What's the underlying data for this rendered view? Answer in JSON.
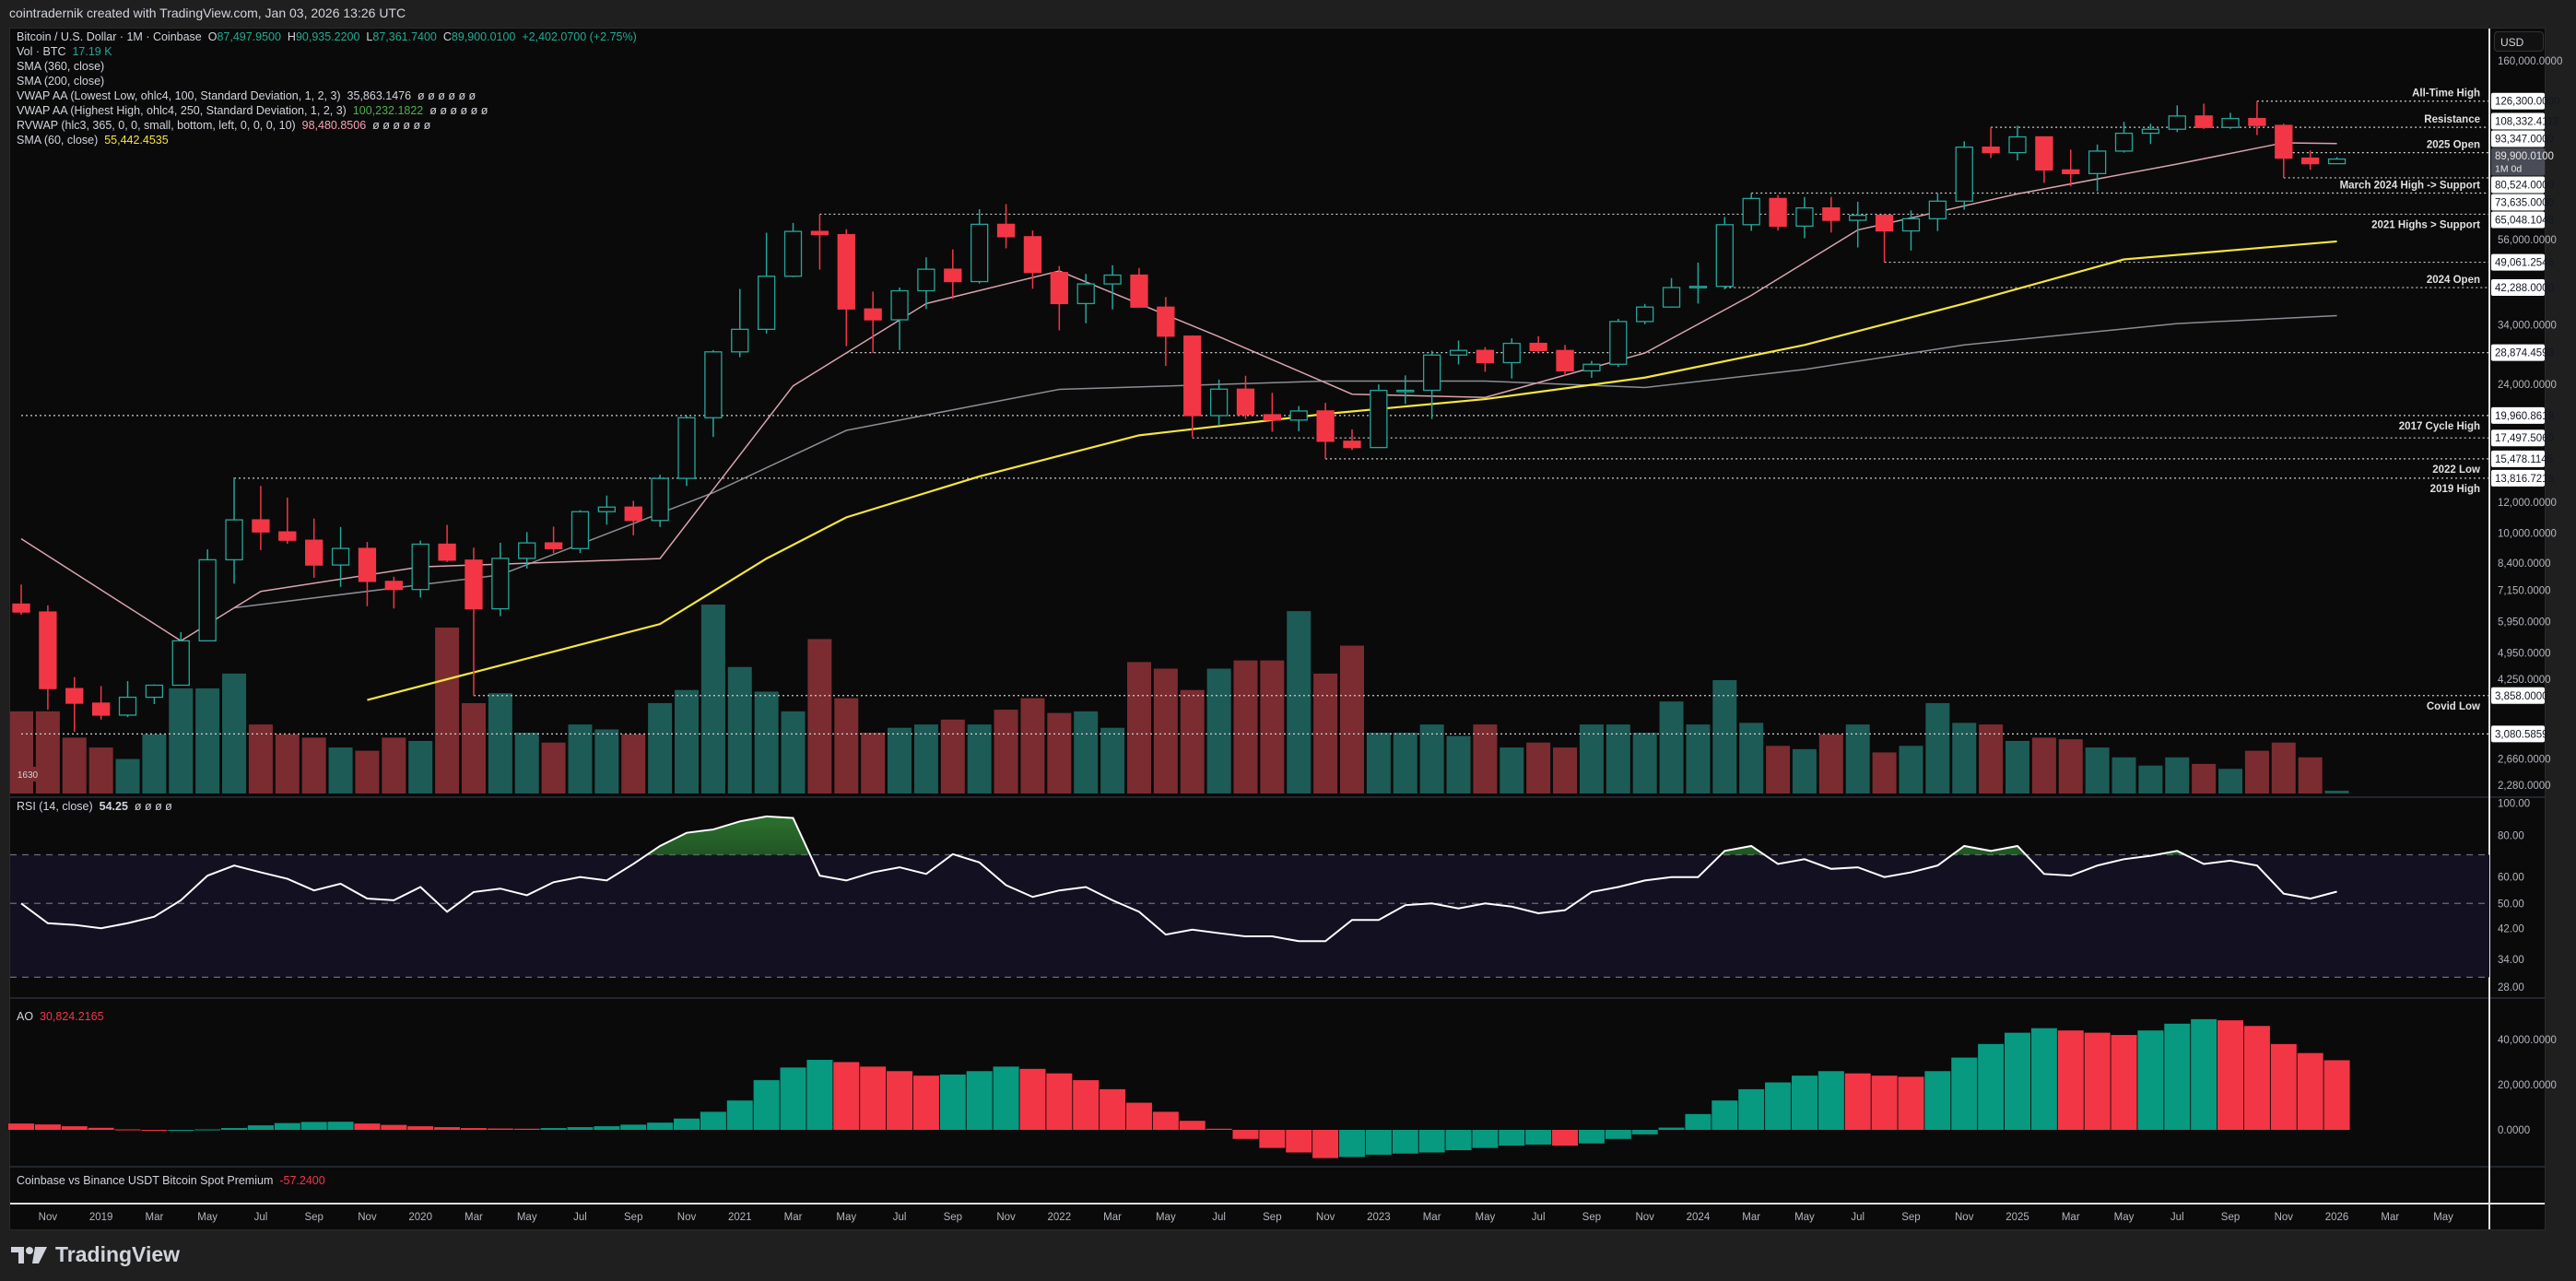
{
  "header": {
    "text": "cointradernik created with TradingView.com, Jan 03, 2026 13:26 UTC"
  },
  "legend": {
    "symbol": "Bitcoin / U.S. Dollar · 1M · Coinbase",
    "o_label": "O",
    "o": "87,497.9500",
    "h_label": "H",
    "h": "90,935.2200",
    "l_label": "L",
    "l": "87,361.7400",
    "c_label": "C",
    "c": "89,900.0100",
    "change": "+2,402.0700 (+2.75%)",
    "vol_label": "Vol · BTC",
    "vol": "17.19 K",
    "sma360": "SMA (360, close)",
    "sma200": "SMA (200, close)",
    "vwap_low": "VWAP AA (Lowest Low, ohlc4, 100, Standard Deviation, 1, 2, 3)",
    "vwap_low_val": "35,863.1476",
    "vwap_high": "VWAP AA (Highest High, ohlc4, 250, Standard Deviation, 1, 2, 3)",
    "vwap_high_val": "100,232.1822",
    "rvwap": "RVWAP (hlc3, 365, 0, 0, small, bottom, left, 0, 0, 0, 10)",
    "rvwap_val": "98,480.8506",
    "sma60": "SMA (60, close)",
    "sma60_val": "55,442.4535",
    "na": "ø ø ø ø ø ø"
  },
  "price_axis": {
    "currency": "USD",
    "ticks": [
      "160,000.0000",
      "56,000.0000",
      "34,000.0000",
      "24,000.0000",
      "12,000.0000",
      "10,000.0000",
      "8,400.0000",
      "7,150.0000",
      "5,950.0000",
      "4,950.0000",
      "4,250.0000",
      "2,660.0000",
      "2,280.0000"
    ],
    "tick_values": [
      160000,
      56000,
      34000,
      24000,
      12000,
      10000,
      8400,
      7150,
      5950,
      4950,
      4250,
      2660,
      2280
    ],
    "current_price": "89,900.0100",
    "current_countdown": "1M 0d"
  },
  "levels": [
    {
      "price": 126300,
      "tag": "126,300.0000",
      "label": "All-Time High",
      "pos": "above",
      "from": 84
    },
    {
      "price": 108332.4112,
      "tag": "108,332.4112",
      "label": "Resistance",
      "pos": "above",
      "from": 74
    },
    {
      "price": 93347,
      "tag": "93,347.0000",
      "label": "2025 Open",
      "pos": "above",
      "from": 85
    },
    {
      "price": 80524,
      "tag": "80,524.0000",
      "label": "",
      "pos": "above",
      "from": 85
    },
    {
      "price": 73635,
      "tag": "73,635.0000",
      "label": "March 2024 High -> Support",
      "pos": "above",
      "from": 65
    },
    {
      "price": 65048.1048,
      "tag": "65,048.1048",
      "label": "2021 Highs > Support",
      "pos": "below",
      "from": 30
    },
    {
      "price": 49061.2546,
      "tag": "49,061.2546",
      "label": "",
      "pos": "above",
      "from": 70
    },
    {
      "price": 42288,
      "tag": "42,288.0000",
      "label": "2024 Open",
      "pos": "above",
      "from": 64
    },
    {
      "price": 28874.4593,
      "tag": "28,874.4593",
      "label": "",
      "pos": "above",
      "from": 31
    },
    {
      "price": 19960.8619,
      "tag": "19,960.8619",
      "label": "2017 Cycle High",
      "pos": "below",
      "from": 0
    },
    {
      "price": 17497.506,
      "tag": "17,497.5060",
      "label": "",
      "pos": "above",
      "from": 44
    },
    {
      "price": 15478.1145,
      "tag": "15,478.1145",
      "label": "2022 Low",
      "pos": "below",
      "from": 49
    },
    {
      "price": 13816.7216,
      "tag": "13,816.7216",
      "label": "2019 High",
      "pos": "below",
      "from": 8
    },
    {
      "price": 3858,
      "tag": "3,858.0000",
      "label": "Covid Low",
      "pos": "below",
      "from": 17
    },
    {
      "price": 3080.5859,
      "tag": "3,080.5859",
      "label": "",
      "pos": "above",
      "from": 0
    }
  ],
  "volume_badge": "1630",
  "rsi": {
    "label": "RSI (14, close)",
    "value": "54.25",
    "na": "ø ø ø ø",
    "ticks": [
      "100.00",
      "80.00",
      "60.00",
      "50.00",
      "42.00",
      "34.00",
      "28.00"
    ],
    "tick_values": [
      100,
      80,
      60,
      50,
      42,
      34,
      28
    ]
  },
  "ao": {
    "label": "AO",
    "value": "30,824.2165",
    "ticks": [
      "40,000.0000",
      "20,000.0000",
      "0.0000"
    ],
    "tick_values": [
      40000,
      20000,
      0
    ]
  },
  "premium": {
    "label": "Coinbase vs Binance USDT Bitcoin Spot Premium",
    "value": "-57.2400"
  },
  "time_axis": [
    "Nov",
    "2019",
    "Mar",
    "May",
    "Jul",
    "Sep",
    "Nov",
    "2020",
    "Mar",
    "May",
    "Jul",
    "Sep",
    "Nov",
    "2021",
    "Mar",
    "May",
    "Jul",
    "Sep",
    "Nov",
    "2022",
    "Mar",
    "May",
    "Jul",
    "Sep",
    "Nov",
    "2023",
    "Mar",
    "May",
    "Jul",
    "Sep",
    "Nov",
    "2024",
    "Mar",
    "May",
    "Jul",
    "Sep",
    "Nov",
    "2025",
    "Mar",
    "May",
    "Jul",
    "Sep",
    "Nov",
    "2026",
    "Mar",
    "May"
  ],
  "footer": {
    "brand": "TradingView"
  },
  "colors": {
    "up": "#26a69a",
    "down": "#f23645",
    "vol_up": "#1d5b56",
    "vol_down": "#7b2c30",
    "sma60": "#f5e63c",
    "rvwap": "#d9a3ad",
    "vwap_low": "#8a8d94",
    "rsi": "#ffffff"
  },
  "chart_data": {
    "type": "candlestick",
    "interval": "1M",
    "start_month": "2018-10",
    "scale": "log",
    "ylim": [
      2280,
      160000
    ],
    "candles_ohlc": [
      [
        6600,
        7400,
        6200,
        6300
      ],
      [
        6300,
        6550,
        3550,
        4020
      ],
      [
        4020,
        4300,
        3120,
        3690
      ],
      [
        3690,
        4080,
        3350,
        3440
      ],
      [
        3440,
        4200,
        3400,
        3820
      ],
      [
        3820,
        4120,
        3670,
        4100
      ],
      [
        4100,
        5600,
        4100,
        5320
      ],
      [
        5320,
        9100,
        5320,
        8560
      ],
      [
        8560,
        13880,
        7440,
        10820
      ],
      [
        10820,
        13200,
        9060,
        10080
      ],
      [
        10080,
        12330,
        9400,
        9600
      ],
      [
        9600,
        10900,
        7700,
        8300
      ],
      [
        8300,
        10370,
        7300,
        9150
      ],
      [
        9150,
        9500,
        6520,
        7540
      ],
      [
        7540,
        7750,
        6430,
        7190
      ],
      [
        7190,
        9580,
        6860,
        9380
      ],
      [
        9380,
        10500,
        8450,
        8540
      ],
      [
        8540,
        9190,
        3858,
        6420
      ],
      [
        6420,
        9460,
        6150,
        8630
      ],
      [
        8630,
        10070,
        8130,
        9450
      ],
      [
        9450,
        10400,
        8900,
        9140
      ],
      [
        9140,
        11450,
        8900,
        11350
      ],
      [
        11350,
        12480,
        10520,
        11660
      ],
      [
        11660,
        12100,
        9880,
        10780
      ],
      [
        10780,
        14100,
        10380,
        13800
      ],
      [
        13800,
        19900,
        13200,
        19700
      ],
      [
        19700,
        29300,
        17600,
        29000
      ],
      [
        29000,
        41950,
        28100,
        33100
      ],
      [
        33100,
        58350,
        32300,
        45200
      ],
      [
        45200,
        61800,
        44950,
        58800
      ],
      [
        58800,
        64900,
        47000,
        57700
      ],
      [
        57700,
        59600,
        30000,
        37300
      ],
      [
        37300,
        41300,
        28800,
        35000
      ],
      [
        35000,
        42300,
        29300,
        41500
      ],
      [
        41500,
        50500,
        37300,
        47100
      ],
      [
        47100,
        52900,
        39600,
        43800
      ],
      [
        43800,
        67000,
        43300,
        61300
      ],
      [
        61300,
        69000,
        53250,
        57000
      ],
      [
        57000,
        59100,
        42000,
        46200
      ],
      [
        46200,
        47990,
        32900,
        38500
      ],
      [
        38500,
        45800,
        34300,
        43200
      ],
      [
        43200,
        48200,
        37200,
        45500
      ],
      [
        45500,
        47450,
        37600,
        37700
      ],
      [
        37700,
        40000,
        26700,
        31800
      ],
      [
        31800,
        31950,
        17600,
        19950
      ],
      [
        19950,
        24650,
        18800,
        23300
      ],
      [
        23300,
        25200,
        19550,
        20050
      ],
      [
        20050,
        22800,
        18150,
        19430
      ],
      [
        19430,
        21100,
        18200,
        20500
      ],
      [
        20500,
        21500,
        15480,
        17160
      ],
      [
        17160,
        18400,
        16300,
        16540
      ],
      [
        16540,
        23950,
        16500,
        23130
      ],
      [
        23130,
        25250,
        21350,
        23140
      ],
      [
        23140,
        29200,
        19550,
        28460
      ],
      [
        28460,
        31000,
        26940,
        29250
      ],
      [
        29250,
        29820,
        25800,
        27220
      ],
      [
        27220,
        31400,
        24800,
        30480
      ],
      [
        30480,
        31800,
        28860,
        29230
      ],
      [
        29230,
        30200,
        25200,
        25940
      ],
      [
        25940,
        27490,
        24900,
        26960
      ],
      [
        26960,
        35200,
        26540,
        34650
      ],
      [
        34650,
        38420,
        34100,
        37720
      ],
      [
        37720,
        44700,
        37600,
        42288
      ],
      [
        42288,
        48970,
        38500,
        42580
      ],
      [
        42580,
        64000,
        41880,
        61160
      ],
      [
        61160,
        73635,
        59000,
        71330
      ],
      [
        71330,
        72800,
        59100,
        60640
      ],
      [
        60640,
        71950,
        56500,
        67490
      ],
      [
        67490,
        71970,
        58400,
        62750
      ],
      [
        62750,
        70000,
        53500,
        64620
      ],
      [
        64620,
        65100,
        49000,
        58970
      ],
      [
        58970,
        66500,
        52550,
        63330
      ],
      [
        63330,
        73600,
        58900,
        70215
      ],
      [
        70215,
        99800,
        66800,
        96400
      ],
      [
        96400,
        108300,
        90500,
        93347
      ],
      [
        93347,
        109350,
        89200,
        102400
      ],
      [
        102400,
        102500,
        78200,
        84350
      ],
      [
        84350,
        95000,
        76600,
        82550
      ],
      [
        82550,
        97900,
        74400,
        94200
      ],
      [
        94200,
        111900,
        93400,
        104600
      ],
      [
        104600,
        110600,
        98200,
        107100
      ],
      [
        107100,
        123200,
        105300,
        115750
      ],
      [
        115750,
        124450,
        107300,
        108250
      ],
      [
        108250,
        117900,
        107300,
        114050
      ],
      [
        114050,
        126300,
        103500,
        109500
      ],
      [
        109500,
        110600,
        80524,
        90400
      ],
      [
        90400,
        94600,
        84400,
        87498
      ],
      [
        87497.95,
        90935.22,
        87361.74,
        89900.01
      ]
    ],
    "volume_k": [
      500,
      500,
      340,
      280,
      210,
      360,
      640,
      640,
      730,
      420,
      360,
      340,
      280,
      260,
      340,
      320,
      1010,
      550,
      610,
      370,
      310,
      420,
      390,
      360,
      550,
      630,
      1150,
      770,
      620,
      500,
      940,
      580,
      370,
      400,
      420,
      450,
      420,
      510,
      580,
      490,
      500,
      400,
      800,
      760,
      630,
      760,
      810,
      810,
      1110,
      730,
      900,
      370,
      370,
      420,
      350,
      420,
      280,
      310,
      280,
      420,
      420,
      370,
      560,
      420,
      690,
      430,
      290,
      270,
      360,
      420,
      250,
      290,
      550,
      430,
      420,
      320,
      340,
      330,
      280,
      220,
      170,
      220,
      180,
      150,
      260,
      310,
      220,
      17.19
    ],
    "sma60": [
      [
        13,
        3760
      ],
      [
        18,
        4605
      ],
      [
        24,
        5870
      ],
      [
        28,
        8620
      ],
      [
        31,
        10980
      ],
      [
        36,
        13960
      ],
      [
        42,
        17770
      ],
      [
        49,
        20150
      ],
      [
        55,
        21980
      ],
      [
        61,
        24930
      ],
      [
        67,
        30200
      ],
      [
        73,
        38500
      ],
      [
        79,
        49900
      ],
      [
        87,
        55442
      ]
    ],
    "rvwap": [
      [
        0,
        9680
      ],
      [
        6,
        5320
      ],
      [
        9,
        7110
      ],
      [
        15,
        8210
      ],
      [
        24,
        8620
      ],
      [
        29,
        23750
      ],
      [
        34,
        38500
      ],
      [
        39,
        46600
      ],
      [
        45,
        31700
      ],
      [
        50,
        22620
      ],
      [
        55,
        22200
      ],
      [
        61,
        28800
      ],
      [
        65,
        40400
      ],
      [
        69,
        59300
      ],
      [
        75,
        73300
      ],
      [
        81,
        87300
      ],
      [
        85,
        98900
      ],
      [
        87,
        98480
      ]
    ],
    "vwap_lowest_low": [
      [
        8,
        6460
      ],
      [
        18,
        7830
      ],
      [
        26,
        12690
      ],
      [
        31,
        18290
      ],
      [
        39,
        23270
      ],
      [
        49,
        24430
      ],
      [
        55,
        24430
      ],
      [
        61,
        23520
      ],
      [
        67,
        26150
      ],
      [
        73,
        30200
      ],
      [
        81,
        34240
      ],
      [
        87,
        35863
      ]
    ],
    "rsi": [
      50,
      43.6,
      43.1,
      42.1,
      43.6,
      45.6,
      51.1,
      60.6,
      65,
      62,
      59.3,
      54.7,
      57.3,
      51.7,
      51.1,
      56,
      47.2,
      54.1,
      55.4,
      52.9,
      57.9,
      60,
      58.6,
      65.7,
      74.4,
      81.5,
      83.4,
      88.2,
      91.3,
      90.3,
      60.6,
      58.6,
      62,
      64.2,
      61.3,
      70.3,
      66.4,
      56.7,
      52.3,
      54.7,
      56,
      51.1,
      47.2,
      40.3,
      41.7,
      40.7,
      39.8,
      39.8,
      38.5,
      38.5,
      44.6,
      44.6,
      49.4,
      50,
      48.3,
      50,
      48.9,
      46.7,
      47.7,
      54.1,
      56,
      58.6,
      60,
      60,
      71.9,
      74.4,
      65.7,
      67.9,
      63.5,
      64.2,
      60,
      62,
      65,
      74.4,
      71.9,
      74.4,
      61.3,
      60.6,
      65,
      67.9,
      69.5,
      71.9,
      65.7,
      67.2,
      65,
      53.5,
      51.7,
      54.25
    ],
    "rsi_bands": [
      70,
      50,
      30
    ],
    "ao_k": [
      2.8,
      2.4,
      1.6,
      0.9,
      0.2,
      -0.3,
      -0.3,
      0.2,
      0.8,
      2,
      3,
      3.5,
      3.6,
      2.8,
      2.2,
      1.6,
      1.2,
      0.8,
      0.6,
      0.5,
      0.8,
      1.2,
      1.6,
      2.3,
      3.2,
      5,
      8,
      13,
      22,
      27.6,
      31,
      30,
      28,
      26,
      24,
      24.5,
      26,
      28,
      27,
      25,
      22,
      18,
      12,
      8,
      4,
      0.5,
      -4,
      -8,
      -10,
      -12.5,
      -12,
      -11,
      -10.5,
      -10,
      -9,
      -8,
      -7,
      -6.5,
      -7,
      -6,
      -4,
      -2,
      1,
      7,
      13,
      18,
      21,
      24,
      26,
      25,
      24,
      23.5,
      26,
      32,
      38,
      43,
      45,
      44,
      43,
      42,
      44,
      47,
      49,
      48.5,
      46,
      38,
      34,
      30.824
    ]
  }
}
